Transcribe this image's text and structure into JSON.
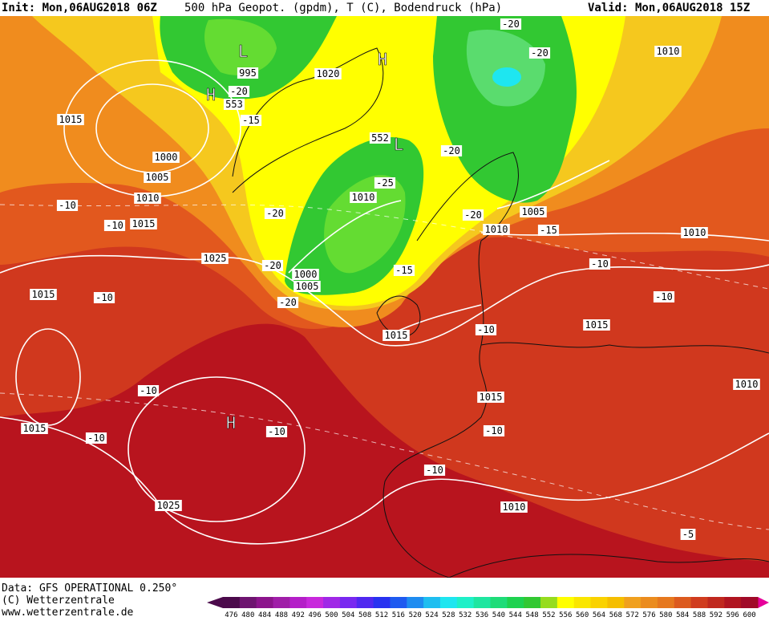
{
  "header": {
    "init": "Init: Mon,06AUG2018 06Z",
    "title": "500 hPa Geopot. (gpdm), T (C), Bodendruck (hPa)",
    "valid": "Valid: Mon,06AUG2018 15Z"
  },
  "footer": {
    "source": "Data: GFS OPERATIONAL 0.250°",
    "copyright": "(C) Wetterzentrale",
    "url": "www.wetterzentrale.de"
  },
  "scale": {
    "ticks": [
      476,
      480,
      484,
      488,
      492,
      496,
      500,
      504,
      508,
      512,
      516,
      520,
      524,
      528,
      532,
      536,
      540,
      544,
      548,
      552,
      556,
      560,
      564,
      568,
      572,
      576,
      580,
      584,
      588,
      592,
      596,
      600
    ],
    "colors": [
      "#4b0a4b",
      "#6e1470",
      "#8c148c",
      "#a01ea8",
      "#b41ec8",
      "#c828dc",
      "#a028e6",
      "#7828f0",
      "#5028f0",
      "#2832f0",
      "#1e5af0",
      "#1e8cf0",
      "#1ebef0",
      "#1ee6f0",
      "#1ef0c8",
      "#1ee6a0",
      "#1edc78",
      "#1ed250",
      "#32c832",
      "#96dc1e",
      "#ffff00",
      "#fae600",
      "#fad200",
      "#f5be00",
      "#f0a01e",
      "#eb8c1e",
      "#e6781e",
      "#dc5a1e",
      "#d03c1e",
      "#c0281e",
      "#b01420",
      "#a00a28"
    ]
  },
  "map": {
    "pressure_labels": [
      "1015",
      "1000",
      "1005",
      "1010",
      "-10",
      "-10",
      "1015",
      "1025",
      "1015",
      "-10",
      "-20",
      "-20",
      "1000",
      "1005",
      "-20",
      "1010",
      "-25",
      "552",
      "-15",
      "1015",
      "995",
      "-20",
      "553",
      "-15",
      "1020",
      "-20",
      "-20",
      "1010",
      "-20",
      "1005",
      "-20",
      "1010",
      "-15",
      "1010",
      "-10",
      "-10",
      "1015",
      "-10",
      "1015",
      "-10",
      "1010",
      "-10",
      "1015",
      "-10",
      "-10",
      "-10",
      "1025",
      "1010",
      "-5"
    ],
    "systems": [
      "L",
      "H",
      "H",
      "L",
      "H"
    ]
  }
}
